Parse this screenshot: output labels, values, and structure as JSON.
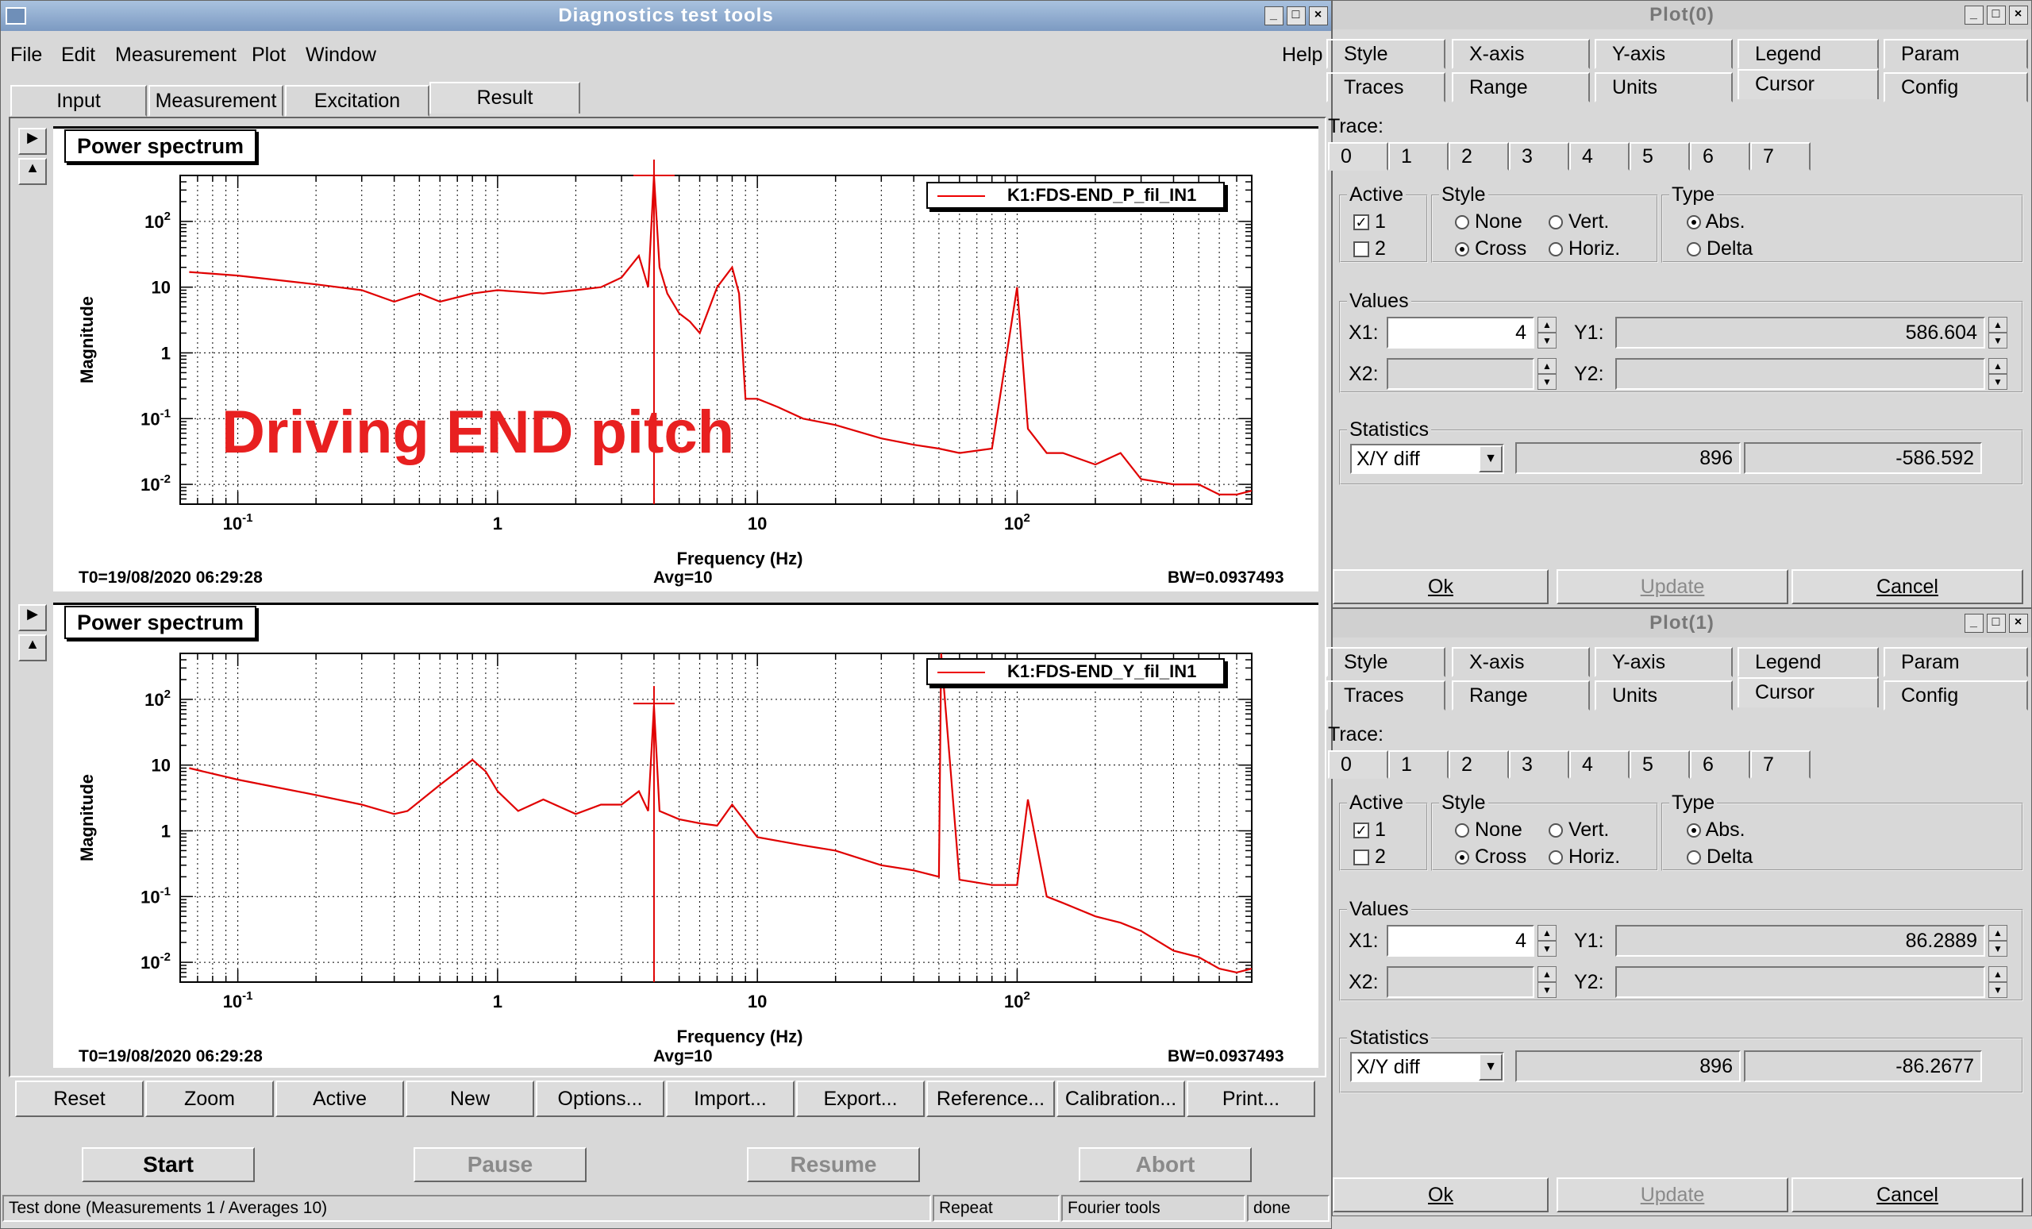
{
  "main": {
    "title": "Diagnostics test tools",
    "menu": [
      "File",
      "Edit",
      "Measurement",
      "Plot",
      "Window"
    ],
    "help": "Help",
    "tabs": [
      "Input",
      "Measurement",
      "Excitation",
      "Result"
    ],
    "annotation": "Driving END pitch",
    "buttons": [
      "Reset",
      "Zoom",
      "Active",
      "New",
      "Options...",
      "Import...",
      "Export...",
      "Reference...",
      "Calibration...",
      "Print..."
    ],
    "controls": {
      "start": "Start",
      "pause": "Pause",
      "resume": "Resume",
      "abort": "Abort"
    },
    "status": {
      "message": "Test done (Measurements 1 / Averages 10)",
      "repeat": "Repeat",
      "fourier": "Fourier tools",
      "state": "done"
    }
  },
  "plots": [
    {
      "title": "Power spectrum",
      "legend": "K1:FDS-END_P_fil_IN1",
      "t0": "T0=19/08/2020 06:29:28",
      "avg": "Avg=10",
      "bw": "BW=0.0937493"
    },
    {
      "title": "Power spectrum",
      "legend": "K1:FDS-END_Y_fil_IN1",
      "t0": "T0=19/08/2020 06:29:28",
      "avg": "Avg=10",
      "bw": "BW=0.0937493"
    }
  ],
  "chart_data": [
    {
      "type": "line",
      "title": "Power spectrum",
      "xlabel": "Frequency (Hz)",
      "ylabel": "Magnitude",
      "xscale": "log",
      "yscale": "log",
      "xlim": [
        0.06,
        800
      ],
      "ylim": [
        0.005,
        500
      ],
      "x_ticks": [
        "10^-1",
        "1",
        "10",
        "10^2"
      ],
      "y_ticks": [
        "10^2",
        "10",
        "1",
        "10^-1",
        "10^-2"
      ],
      "series": [
        {
          "name": "K1:FDS-END_P_fil_IN1",
          "color": "#e00000",
          "x": [
            0.065,
            0.1,
            0.2,
            0.3,
            0.4,
            0.5,
            0.6,
            0.7,
            0.8,
            1,
            1.5,
            2,
            2.5,
            3,
            3.5,
            3.8,
            4,
            4.2,
            4.5,
            5,
            5.5,
            6,
            7,
            8,
            8.5,
            9,
            10,
            12,
            15,
            20,
            30,
            40,
            50,
            60,
            80,
            100,
            110,
            130,
            150,
            200,
            250,
            300,
            400,
            500,
            600,
            700,
            800
          ],
          "y": [
            17,
            15,
            11,
            9,
            6,
            8,
            6,
            7,
            8,
            9,
            8,
            9,
            10,
            14,
            30,
            10,
            580,
            20,
            8,
            4,
            3,
            2,
            10,
            20,
            8,
            0.2,
            0.2,
            0.15,
            0.1,
            0.08,
            0.05,
            0.04,
            0.035,
            0.03,
            0.035,
            10,
            0.07,
            0.03,
            0.03,
            0.02,
            0.03,
            0.012,
            0.01,
            0.01,
            0.007,
            0.007,
            0.008
          ]
        }
      ],
      "grid": true,
      "legend_position": "top-right",
      "cursor": {
        "x": 4,
        "y": 586.604
      }
    },
    {
      "type": "line",
      "title": "Power spectrum",
      "xlabel": "Frequency (Hz)",
      "ylabel": "Magnitude",
      "xscale": "log",
      "yscale": "log",
      "xlim": [
        0.06,
        800
      ],
      "ylim": [
        0.005,
        500
      ],
      "x_ticks": [
        "10^-1",
        "1",
        "10",
        "10^2"
      ],
      "y_ticks": [
        "10^2",
        "10",
        "1",
        "10^-1",
        "10^-2"
      ],
      "series": [
        {
          "name": "K1:FDS-END_Y_fil_IN1",
          "color": "#e00000",
          "x": [
            0.065,
            0.1,
            0.2,
            0.3,
            0.4,
            0.45,
            0.6,
            0.8,
            0.9,
            1,
            1.2,
            1.5,
            2,
            2.5,
            3,
            3.5,
            3.8,
            4,
            4.2,
            5,
            6,
            7,
            8,
            10,
            15,
            20,
            30,
            40,
            50,
            51,
            60,
            80,
            100,
            110,
            130,
            150,
            200,
            250,
            300,
            400,
            500,
            600,
            700,
            800
          ],
          "y": [
            9,
            6,
            3.5,
            2.5,
            1.8,
            2,
            5,
            12,
            8,
            4,
            2,
            3,
            1.8,
            2.5,
            2.5,
            4,
            2,
            80,
            2,
            1.5,
            1.3,
            1.2,
            2.5,
            0.8,
            0.6,
            0.5,
            0.3,
            0.25,
            0.2,
            500,
            0.18,
            0.15,
            0.15,
            3,
            0.1,
            0.08,
            0.05,
            0.04,
            0.03,
            0.015,
            0.012,
            0.008,
            0.007,
            0.008
          ]
        }
      ],
      "grid": true,
      "legend_position": "top-right",
      "cursor": {
        "x": 4,
        "y": 86.2889
      }
    }
  ],
  "dialogs": [
    {
      "title": "Plot(0)",
      "y1": "586.604",
      "stat1": "896",
      "stat2": "-586.592"
    },
    {
      "title": "Plot(1)",
      "y1": "86.2889",
      "stat1": "896",
      "stat2": "-86.2677"
    }
  ],
  "dialog_common": {
    "tabs_row1": [
      "Style",
      "X-axis",
      "Y-axis",
      "Legend",
      "Param"
    ],
    "tabs_row2": [
      "Traces",
      "Range",
      "Units",
      "Cursor",
      "Config"
    ],
    "trace_label": "Trace:",
    "traces": [
      "0",
      "1",
      "2",
      "3",
      "4",
      "5",
      "6",
      "7"
    ],
    "active_label": "Active",
    "active_items": [
      "1",
      "2"
    ],
    "style_label": "Style",
    "style_items": [
      "None",
      "Vert.",
      "Cross",
      "Horiz."
    ],
    "type_label": "Type",
    "type_items": [
      "Abs.",
      "Delta"
    ],
    "values_label": "Values",
    "x1_label": "X1:",
    "x1_value": "4",
    "y1_label": "Y1:",
    "x2_label": "X2:",
    "y2_label": "Y2:",
    "statistics_label": "Statistics",
    "stat_mode": "X/Y diff",
    "ok": "Ok",
    "update": "Update",
    "cancel": "Cancel"
  }
}
